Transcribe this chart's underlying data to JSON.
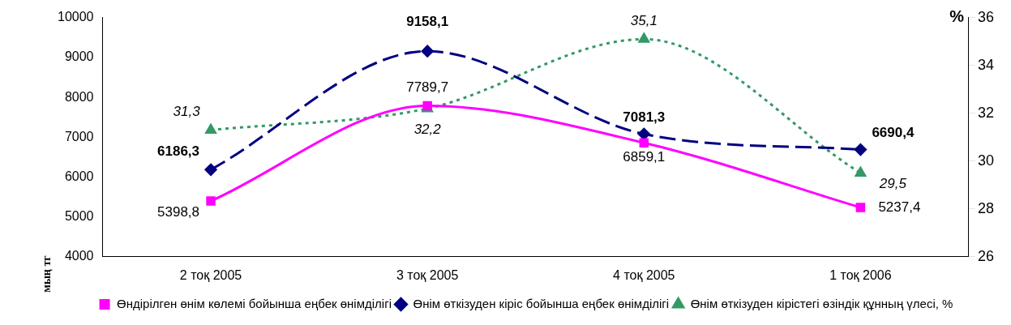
{
  "chart_data": {
    "type": "line",
    "categories": [
      "2 тоқ 2005",
      "3 тоқ 2005",
      "4 тоқ 2005",
      "1 тоқ 2006"
    ],
    "ylabel": "мың тг",
    "y2label": "%",
    "ylim": [
      4000,
      10000
    ],
    "yticks": [
      4000,
      5000,
      6000,
      7000,
      8000,
      9000,
      10000
    ],
    "y2lim": [
      26,
      36
    ],
    "y2ticks": [
      26,
      28,
      30,
      32,
      34,
      36
    ],
    "grid": false,
    "legend": "bottom",
    "series": [
      {
        "name": "Өндірілген өнім көлемі бойынша еңбек өнімділігі",
        "color": "#ff00ff",
        "marker": "square",
        "line_style": "solid",
        "values": [
          5398.8,
          7789.7,
          6859.1,
          5237.4
        ],
        "value_labels": [
          "5398,8",
          "7789,7",
          "6859,1",
          "5237,4"
        ]
      },
      {
        "name": "Өнім өткізуден кіріс бойынша еңбек өнімділігі",
        "color": "#000080",
        "marker": "diamond",
        "line_style": "dashed",
        "values": [
          6186.3,
          9158.1,
          7081.3,
          6690.4
        ],
        "value_labels": [
          "6186,3",
          "9158,1",
          "7081,3",
          "6690,4"
        ]
      },
      {
        "name": "Өнім өткізуден кірістегі өзіндік құнның үлесі, %",
        "color": "#339966",
        "marker": "triangle",
        "line_style": "dotted",
        "axis": "y2",
        "values": [
          31.3,
          32.2,
          35.1,
          29.5
        ],
        "value_labels": [
          "31,3",
          "32,2",
          "35,1",
          "29,5"
        ]
      }
    ]
  }
}
